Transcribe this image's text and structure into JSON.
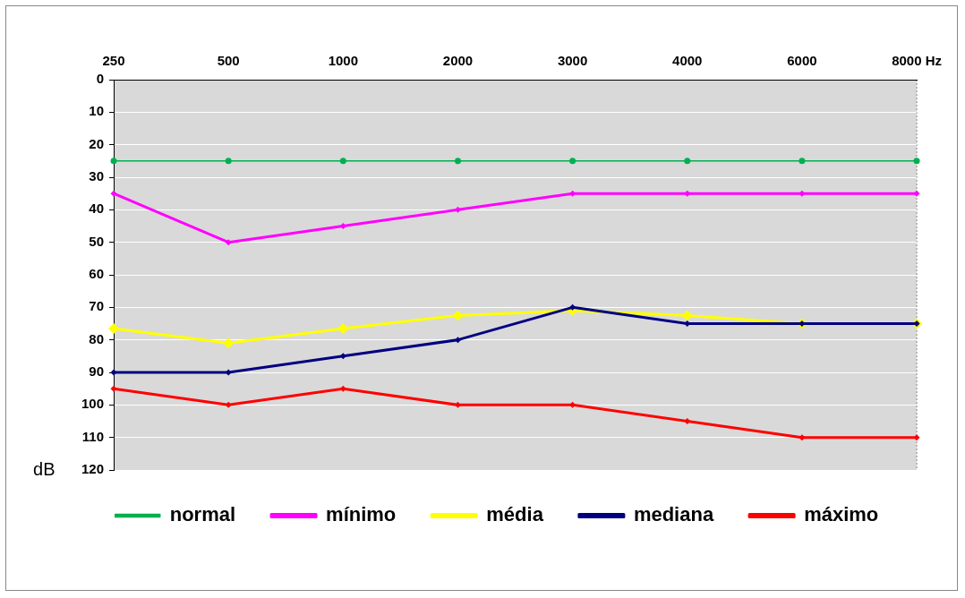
{
  "chart_data": {
    "type": "line",
    "ylabel": "dB",
    "categories": [
      "250",
      "500",
      "1000",
      "2000",
      "3000",
      "4000",
      "6000",
      "8000 Hz"
    ],
    "ylim": [
      120,
      0
    ],
    "yticks": [
      0,
      10,
      20,
      30,
      40,
      50,
      60,
      70,
      80,
      90,
      100,
      110,
      120
    ],
    "grid": "y",
    "legend": "bottom",
    "series": [
      {
        "name": "normal",
        "color": "#00b050",
        "marker": "circle",
        "values": [
          25,
          25,
          25,
          25,
          25,
          25,
          25,
          25
        ]
      },
      {
        "name": "mínimo",
        "color": "#ff00ff",
        "marker": "diamond",
        "values": [
          35,
          50,
          45,
          40,
          35,
          35,
          35,
          35
        ]
      },
      {
        "name": "média",
        "color": "#ffff00",
        "marker": "diamond",
        "values": [
          76.5,
          81,
          76.5,
          72.5,
          71,
          72.5,
          75,
          75
        ]
      },
      {
        "name": "mediana",
        "color": "#000080",
        "marker": "diamond",
        "values": [
          90,
          90,
          85,
          80,
          70,
          75,
          75,
          75
        ]
      },
      {
        "name": "máximo",
        "color": "#ff0000",
        "marker": "diamond",
        "values": [
          95,
          100,
          95,
          100,
          100,
          105,
          110,
          110
        ]
      }
    ]
  }
}
